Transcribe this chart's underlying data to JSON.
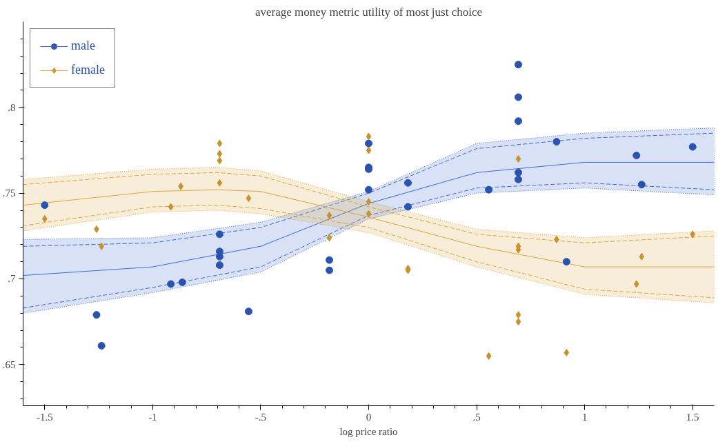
{
  "chart_data": {
    "type": "scatter",
    "xlabel": "log price ratio",
    "ylabel": "average money metric utility of most just choice",
    "xlim": [
      -1.6,
      1.6
    ],
    "ylim": [
      0.626,
      0.85
    ],
    "xticks": [
      {
        "value": -1.5,
        "label": "-1.5"
      },
      {
        "value": -1.4,
        "label": null
      },
      {
        "value": -1.3,
        "label": null
      },
      {
        "value": -1.2,
        "label": null
      },
      {
        "value": -1.1,
        "label": null
      },
      {
        "value": -1,
        "label": "-1"
      },
      {
        "value": -0.9,
        "label": null
      },
      {
        "value": -0.8,
        "label": null
      },
      {
        "value": -0.7,
        "label": null
      },
      {
        "value": -0.6,
        "label": null
      },
      {
        "value": -0.5,
        "label": "-.5"
      },
      {
        "value": -0.4,
        "label": null
      },
      {
        "value": -0.3,
        "label": null
      },
      {
        "value": -0.2,
        "label": null
      },
      {
        "value": -0.1,
        "label": null
      },
      {
        "value": 0,
        "label": "0"
      },
      {
        "value": 0.1,
        "label": null
      },
      {
        "value": 0.2,
        "label": null
      },
      {
        "value": 0.3,
        "label": null
      },
      {
        "value": 0.4,
        "label": null
      },
      {
        "value": 0.5,
        "label": ".5"
      },
      {
        "value": 0.6,
        "label": null
      },
      {
        "value": 0.7,
        "label": null
      },
      {
        "value": 0.8,
        "label": null
      },
      {
        "value": 0.9,
        "label": null
      },
      {
        "value": 1,
        "label": "1"
      },
      {
        "value": 1.1,
        "label": null
      },
      {
        "value": 1.2,
        "label": null
      },
      {
        "value": 1.3,
        "label": null
      },
      {
        "value": 1.4,
        "label": null
      },
      {
        "value": 1.5,
        "label": "1.5"
      }
    ],
    "yticks": [
      {
        "value": 0.63,
        "label": null
      },
      {
        "value": 0.64,
        "label": null
      },
      {
        "value": 0.65,
        "label": ".65"
      },
      {
        "value": 0.66,
        "label": null
      },
      {
        "value": 0.67,
        "label": null
      },
      {
        "value": 0.68,
        "label": null
      },
      {
        "value": 0.69,
        "label": null
      },
      {
        "value": 0.7,
        "label": ".7"
      },
      {
        "value": 0.71,
        "label": null
      },
      {
        "value": 0.72,
        "label": null
      },
      {
        "value": 0.73,
        "label": null
      },
      {
        "value": 0.74,
        "label": null
      },
      {
        "value": 0.75,
        "label": ".75"
      },
      {
        "value": 0.76,
        "label": null
      },
      {
        "value": 0.77,
        "label": null
      },
      {
        "value": 0.78,
        "label": null
      },
      {
        "value": 0.79,
        "label": null
      },
      {
        "value": 0.8,
        "label": ".8"
      },
      {
        "value": 0.81,
        "label": null
      },
      {
        "value": 0.82,
        "label": null
      },
      {
        "value": 0.83,
        "label": null
      },
      {
        "value": 0.84,
        "label": null
      }
    ],
    "grid": false,
    "legend": "top left",
    "series": [
      {
        "name": "male",
        "marker": "circle",
        "color": "#2a52b0",
        "x": [
          -1.5,
          -1.26,
          -1.237,
          -0.916,
          -0.863,
          -0.69,
          -0.69,
          -0.69,
          -0.69,
          -0.556,
          -0.182,
          -0.182,
          0,
          0,
          0,
          0,
          0.182,
          0.182,
          0.556,
          0.693,
          0.693,
          0.693,
          0.693,
          0.693,
          0.87,
          0.916,
          1.24,
          1.264,
          1.5
        ],
        "values": [
          0.743,
          0.679,
          0.661,
          0.697,
          0.698,
          0.726,
          0.716,
          0.713,
          0.708,
          0.681,
          0.711,
          0.705,
          0.779,
          0.765,
          0.764,
          0.752,
          0.756,
          0.742,
          0.752,
          0.825,
          0.806,
          0.792,
          0.762,
          0.758,
          0.78,
          0.71,
          0.772,
          0.755,
          0.777
        ]
      },
      {
        "type": "line",
        "line_style": "solid",
        "color": "#3c6ad4",
        "x": [
          -1.6,
          -1,
          -0.5,
          0,
          0.5,
          1,
          1.6
        ],
        "values": [
          0.702,
          0.707,
          0.719,
          0.744,
          0.762,
          0.768,
          0.768
        ],
        "lower": [
          0.68,
          0.692,
          0.704,
          0.735,
          0.75,
          0.753,
          0.749
        ],
        "upper": [
          0.723,
          0.724,
          0.733,
          0.751,
          0.779,
          0.785,
          0.788
        ]
      },
      {
        "type": "line",
        "line_style": "dashed",
        "color": "#3c6ad4",
        "x": [
          -1.6,
          -1,
          -0.5,
          0,
          0.5,
          1,
          1.6
        ],
        "values": [
          0.683,
          0.695,
          0.707,
          0.737,
          0.753,
          0.756,
          0.752
        ]
      },
      {
        "type": "line",
        "line_style": "dashed",
        "color": "#3c6ad4",
        "x": [
          -1.6,
          -1,
          -0.5,
          0,
          0.5,
          1,
          1.6
        ],
        "values": [
          0.719,
          0.721,
          0.73,
          0.75,
          0.776,
          0.782,
          0.785
        ]
      },
      {
        "name": "female",
        "marker": "diamond",
        "color": "#c8922a",
        "x": [
          -1.5,
          -1.26,
          -1.237,
          -0.916,
          -0.87,
          -0.69,
          -0.69,
          -0.69,
          -0.69,
          -0.556,
          -0.182,
          -0.182,
          0,
          0,
          0,
          0,
          0.182,
          0.182,
          0.556,
          0.693,
          0.693,
          0.693,
          0.693,
          0.693,
          0.87,
          0.916,
          1.24,
          1.264,
          1.5
        ],
        "values": [
          0.735,
          0.729,
          0.719,
          0.742,
          0.754,
          0.779,
          0.773,
          0.769,
          0.756,
          0.747,
          0.737,
          0.724,
          0.783,
          0.775,
          0.745,
          0.738,
          0.706,
          0.705,
          0.655,
          0.77,
          0.719,
          0.717,
          0.679,
          0.675,
          0.723,
          0.657,
          0.697,
          0.713,
          0.726
        ]
      },
      {
        "type": "line",
        "line_style": "solid",
        "color": "#dca63c",
        "x": [
          -1.6,
          -1,
          -0.7,
          -0.5,
          0,
          0.5,
          1,
          1.6
        ],
        "values": [
          0.743,
          0.751,
          0.752,
          0.751,
          0.736,
          0.719,
          0.707,
          0.707
        ],
        "lower": [
          0.728,
          0.739,
          0.74,
          0.738,
          0.727,
          0.707,
          0.691,
          0.686
        ],
        "upper": [
          0.758,
          0.764,
          0.765,
          0.763,
          0.745,
          0.729,
          0.724,
          0.728
        ]
      },
      {
        "type": "line",
        "line_style": "dashed",
        "color": "#dca63c",
        "x": [
          -1.6,
          -1,
          -0.7,
          -0.5,
          0,
          0.5,
          1,
          1.6
        ],
        "values": [
          0.755,
          0.761,
          0.762,
          0.76,
          0.742,
          0.726,
          0.721,
          0.725
        ]
      },
      {
        "type": "line",
        "line_style": "dashed",
        "color": "#dca63c",
        "x": [
          -1.6,
          -1,
          -0.7,
          -0.5,
          0,
          0.5,
          1,
          1.6
        ],
        "values": [
          0.731,
          0.742,
          0.743,
          0.741,
          0.73,
          0.71,
          0.694,
          0.689
        ]
      }
    ]
  }
}
